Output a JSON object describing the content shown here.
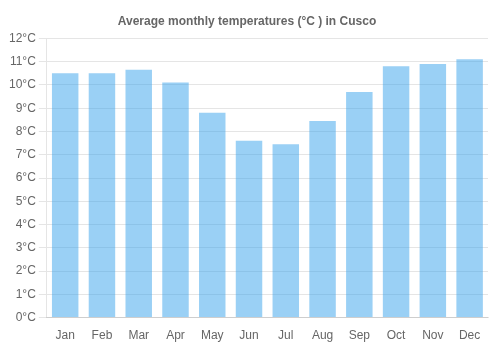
{
  "chart_data": {
    "type": "bar",
    "title": "Average monthly temperatures (°C ) in Cusco",
    "categories": [
      "Jan",
      "Feb",
      "Mar",
      "Apr",
      "May",
      "Jun",
      "Jul",
      "Aug",
      "Sep",
      "Oct",
      "Nov",
      "Dec"
    ],
    "values": [
      10.5,
      10.5,
      10.65,
      10.1,
      8.8,
      7.6,
      7.45,
      8.45,
      9.7,
      10.8,
      10.9,
      11.1
    ],
    "ylim": [
      0,
      12
    ],
    "yticks": [
      {
        "value": 0,
        "label": "0°C"
      },
      {
        "value": 1,
        "label": "1°C"
      },
      {
        "value": 2,
        "label": "2°C"
      },
      {
        "value": 3,
        "label": "3°C"
      },
      {
        "value": 4,
        "label": "4°C"
      },
      {
        "value": 5,
        "label": "5°C"
      },
      {
        "value": 6,
        "label": "6°C"
      },
      {
        "value": 7,
        "label": "7°C"
      },
      {
        "value": 8,
        "label": "8°C"
      },
      {
        "value": 9,
        "label": "9°C"
      },
      {
        "value": 10,
        "label": "10°C"
      },
      {
        "value": 11,
        "label": "11°C"
      },
      {
        "value": 12,
        "label": "12°C"
      }
    ],
    "grid": true
  }
}
